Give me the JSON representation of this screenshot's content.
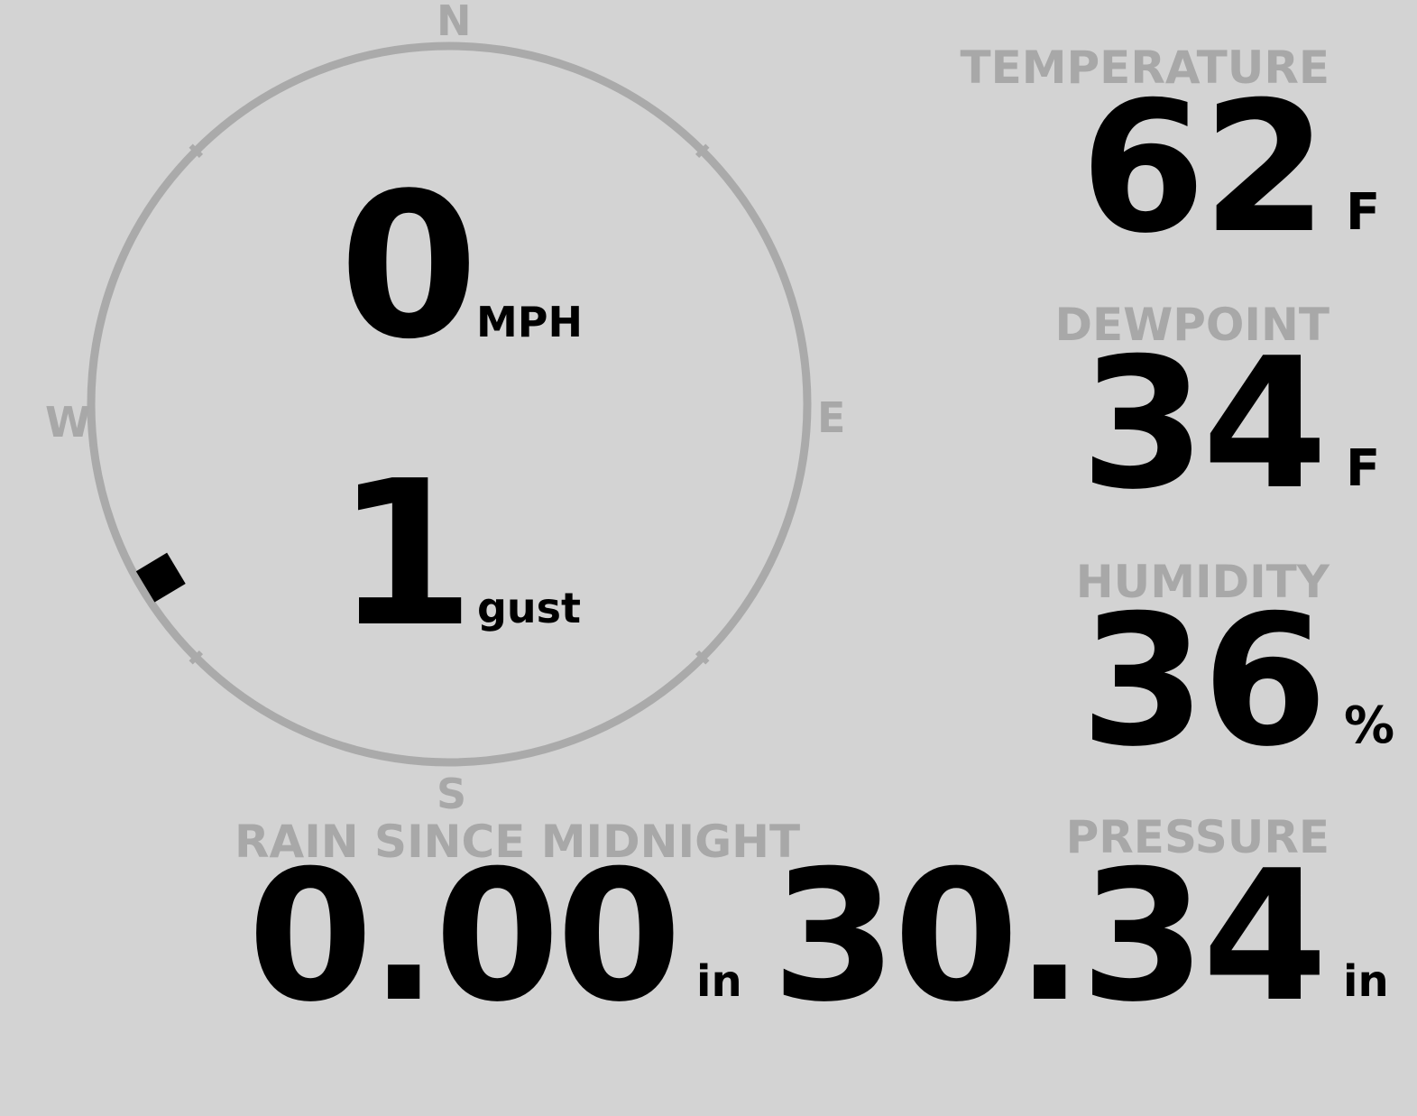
{
  "colors": {
    "background": "#d3d3d3",
    "label": "#a8a8a8",
    "value": "#000000",
    "compass_ring": "#aaaaaa",
    "wind_marker": "#000000"
  },
  "wind": {
    "compass": {
      "n": "N",
      "e": "E",
      "s": "S",
      "w": "W"
    },
    "speed": "0",
    "speed_unit": "MPH",
    "gust": "1",
    "gust_unit": "gust",
    "direction_deg": 239
  },
  "temperature": {
    "label": "TEMPERATURE",
    "value": "62",
    "unit": "F"
  },
  "dewpoint": {
    "label": "DEWPOINT",
    "value": "34",
    "unit": "F"
  },
  "humidity": {
    "label": "HUMIDITY",
    "value": "36",
    "unit": "%"
  },
  "rain": {
    "label": "RAIN SINCE MIDNIGHT",
    "value": "0.00",
    "unit": "in"
  },
  "pressure": {
    "label": "PRESSURE",
    "value": "30.34",
    "unit": "in"
  }
}
